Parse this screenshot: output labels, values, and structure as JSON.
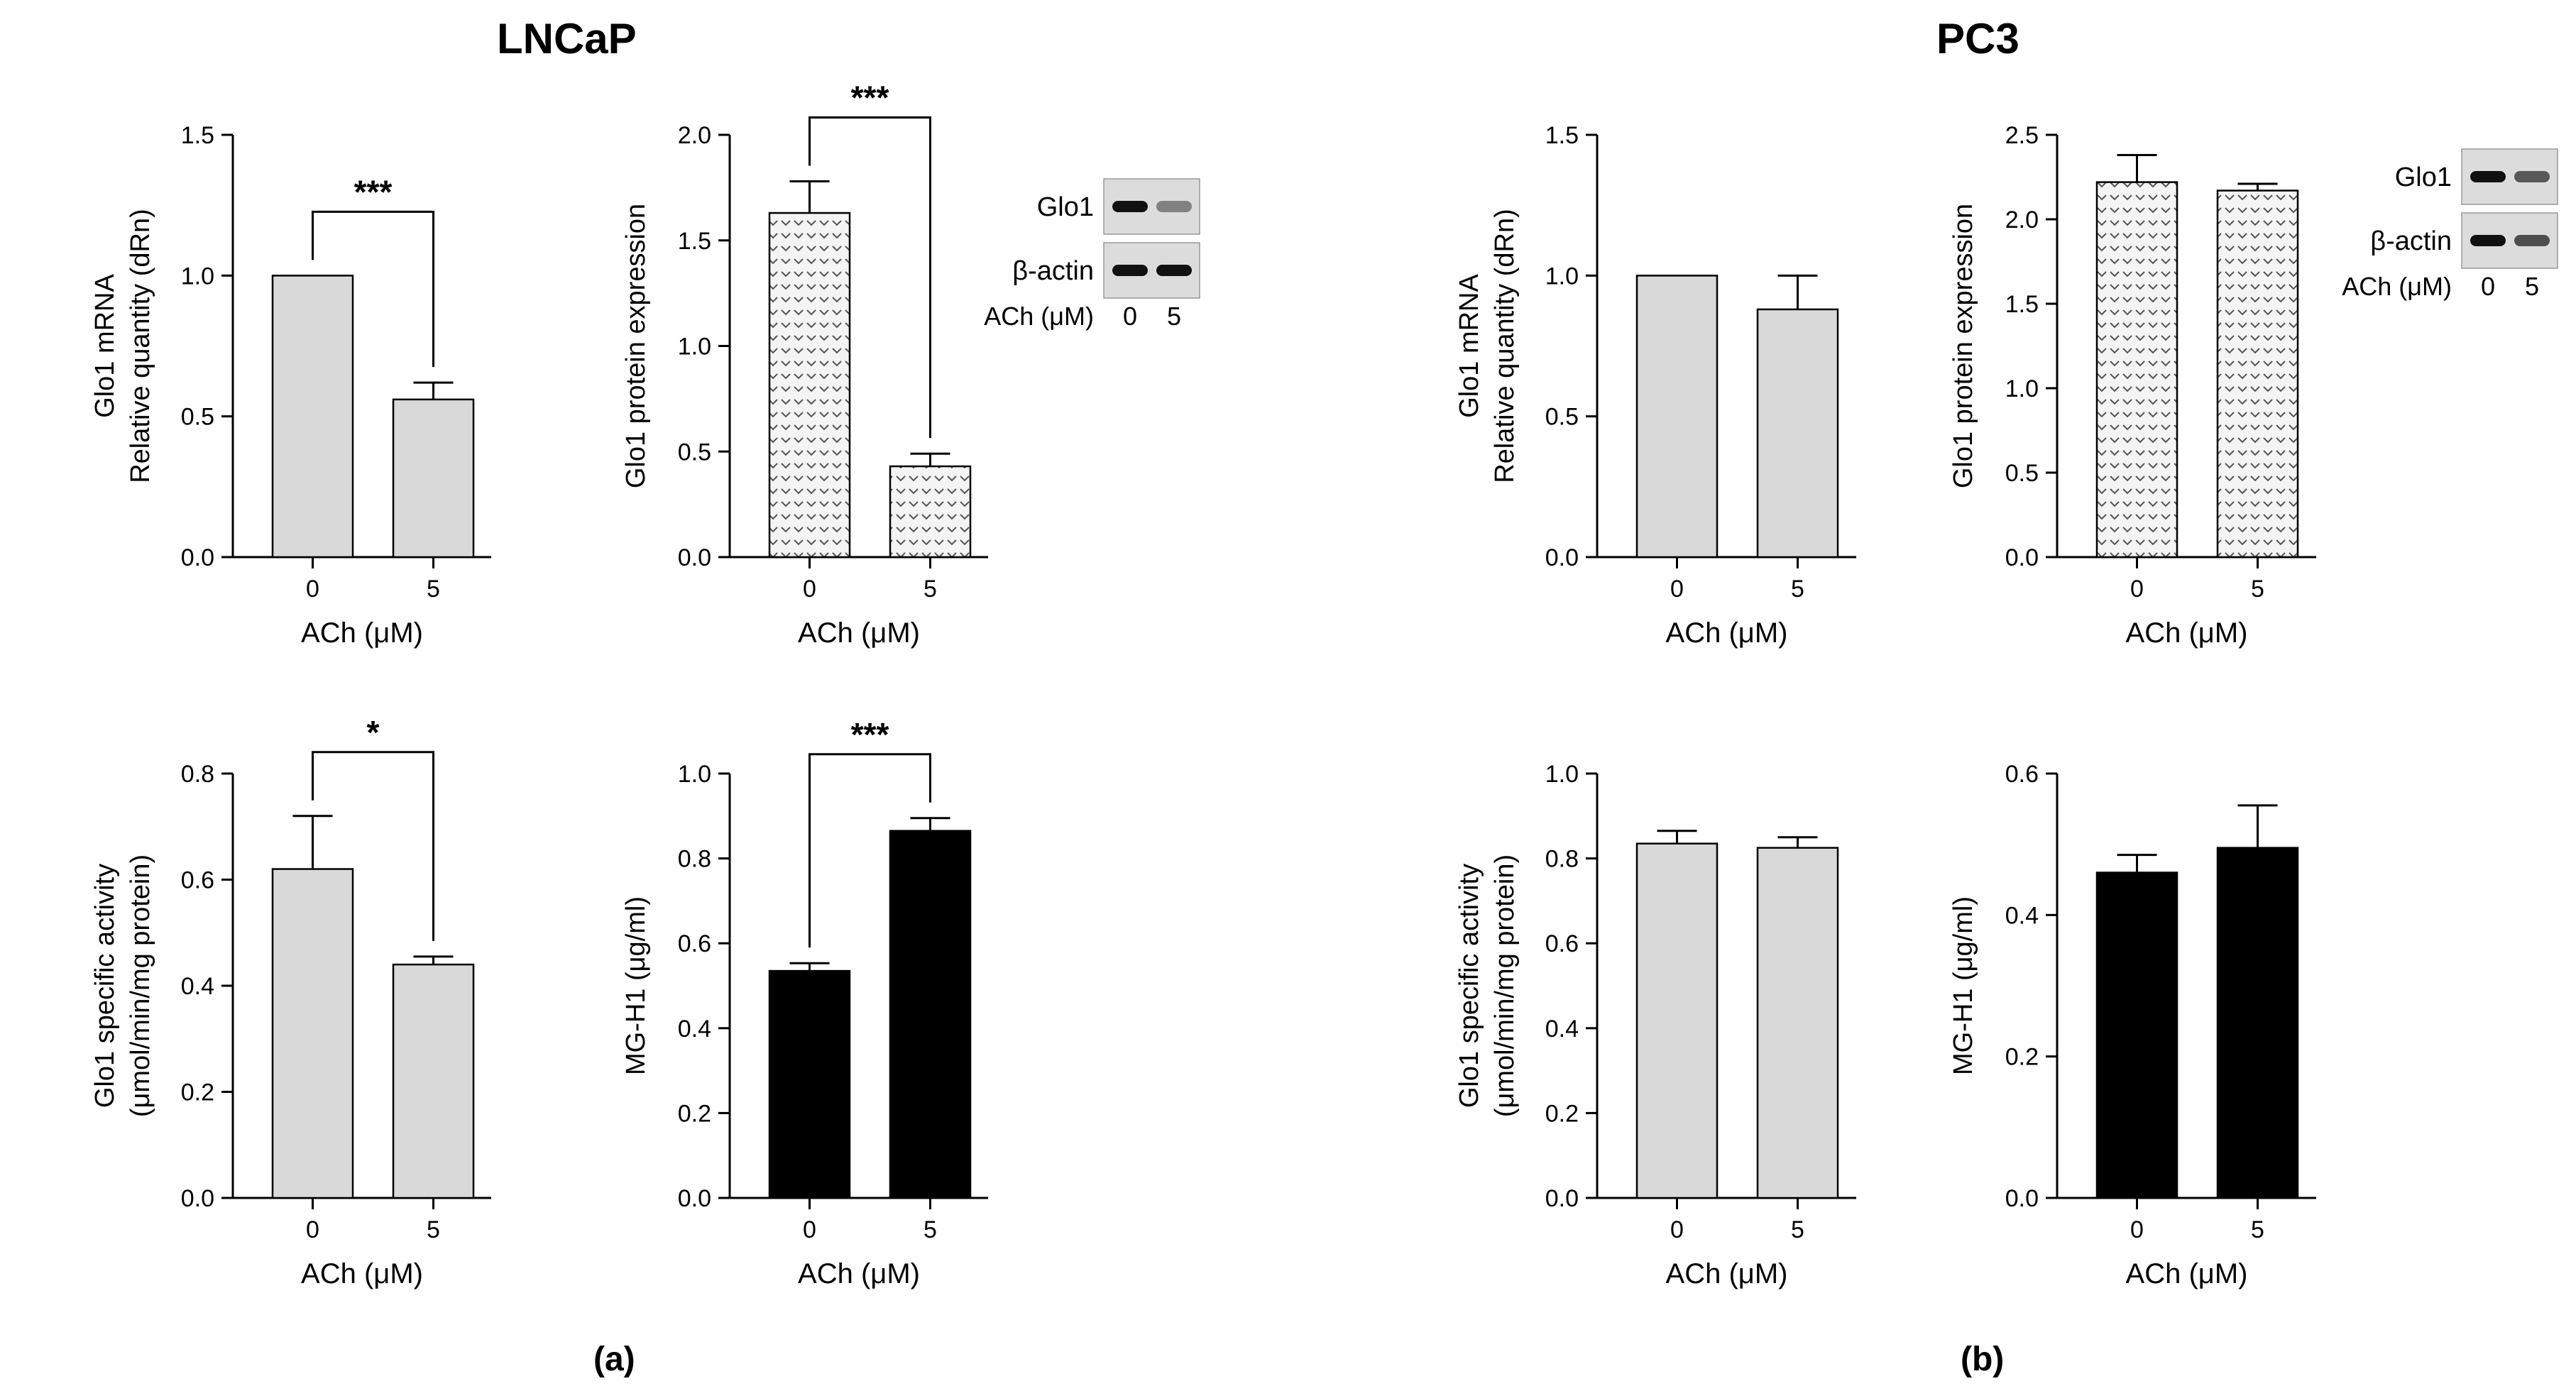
{
  "titles": {
    "left": "LNCaP",
    "right": "PC3"
  },
  "panel_labels": {
    "a": "(a)",
    "b": "(b)"
  },
  "colors": {
    "light_bar": "#d9d9d9",
    "dark_bar": "#000000",
    "axis": "#000000",
    "pattern_bg": "#f2f2f2"
  },
  "chart_data": [
    {
      "id": "lncap-mrna",
      "type": "bar",
      "bar_style": "light",
      "categories": [
        "0",
        "5"
      ],
      "values": [
        1.0,
        0.56
      ],
      "errors": [
        0,
        0.06
      ],
      "ylim": [
        0,
        1.5
      ],
      "yticks": [
        "0.0",
        "0.5",
        "1.0",
        "1.5"
      ],
      "ylabel": [
        "Glo1 mRNA",
        "Relative quantity (dRn)"
      ],
      "xlabel": "ACh (μM)",
      "significance": "***"
    },
    {
      "id": "lncap-protein",
      "type": "bar",
      "bar_style": "pattern",
      "categories": [
        "0",
        "5"
      ],
      "values": [
        1.63,
        0.43
      ],
      "errors": [
        0.15,
        0.06
      ],
      "ylim": [
        0,
        2.0
      ],
      "yticks": [
        "0.0",
        "0.5",
        "1.0",
        "1.5",
        "2.0"
      ],
      "ylabel": [
        "Glo1 protein expression"
      ],
      "xlabel": "ACh (μM)",
      "significance": "***",
      "blot": {
        "row1": "Glo1",
        "row2": "β-actin",
        "lane_label": "ACh (μM)",
        "lanes": [
          "0",
          "5"
        ],
        "row1_intensity": [
          1.0,
          0.45
        ],
        "row2_intensity": [
          1.0,
          1.0
        ]
      }
    },
    {
      "id": "lncap-activity",
      "type": "bar",
      "bar_style": "light",
      "categories": [
        "0",
        "5"
      ],
      "values": [
        0.62,
        0.44
      ],
      "errors": [
        0.1,
        0.015
      ],
      "ylim": [
        0,
        0.8
      ],
      "yticks": [
        "0.0",
        "0.2",
        "0.4",
        "0.6",
        "0.8"
      ],
      "ylabel": [
        "Glo1 specific activity",
        "(μmol/min/mg protein)"
      ],
      "xlabel": "ACh (μM)",
      "significance": "*"
    },
    {
      "id": "lncap-mgh1",
      "type": "bar",
      "bar_style": "dark",
      "categories": [
        "0",
        "5"
      ],
      "values": [
        0.535,
        0.865
      ],
      "errors": [
        0.018,
        0.03
      ],
      "ylim": [
        0,
        1.0
      ],
      "yticks": [
        "0.0",
        "0.2",
        "0.4",
        "0.6",
        "0.8",
        "1.0"
      ],
      "ylabel": [
        "MG-H1 (μg/ml)"
      ],
      "xlabel": "ACh (μM)",
      "significance": "***"
    },
    {
      "id": "pc3-mrna",
      "type": "bar",
      "bar_style": "light",
      "categories": [
        "0",
        "5"
      ],
      "values": [
        1.0,
        0.88
      ],
      "errors": [
        0,
        0.12
      ],
      "ylim": [
        0,
        1.5
      ],
      "yticks": [
        "0.0",
        "0.5",
        "1.0",
        "1.5"
      ],
      "ylabel": [
        "Glo1 mRNA",
        "Relative quantity (dRn)"
      ],
      "xlabel": "ACh (μM)",
      "significance": ""
    },
    {
      "id": "pc3-protein",
      "type": "bar",
      "bar_style": "pattern",
      "categories": [
        "0",
        "5"
      ],
      "values": [
        2.22,
        2.17
      ],
      "errors": [
        0.16,
        0.04
      ],
      "ylim": [
        0,
        2.5
      ],
      "yticks": [
        "0.0",
        "0.5",
        "1.0",
        "1.5",
        "2.0",
        "2.5"
      ],
      "ylabel": [
        "Glo1 protein expression"
      ],
      "xlabel": "ACh (μM)",
      "significance": "",
      "blot": {
        "row1": "Glo1",
        "row2": "β-actin",
        "lane_label": "ACh (μM)",
        "lanes": [
          "0",
          "5"
        ],
        "row1_intensity": [
          1.0,
          0.65
        ],
        "row2_intensity": [
          1.0,
          0.7
        ]
      }
    },
    {
      "id": "pc3-activity",
      "type": "bar",
      "bar_style": "light",
      "categories": [
        "0",
        "5"
      ],
      "values": [
        0.835,
        0.825
      ],
      "errors": [
        0.03,
        0.025
      ],
      "ylim": [
        0,
        1.0
      ],
      "yticks": [
        "0.0",
        "0.2",
        "0.4",
        "0.6",
        "0.8",
        "1.0"
      ],
      "ylabel": [
        "Glo1 specific activity",
        "(μmol/min/mg protein)"
      ],
      "xlabel": "ACh (μM)",
      "significance": ""
    },
    {
      "id": "pc3-mgh1",
      "type": "bar",
      "bar_style": "dark",
      "categories": [
        "0",
        "5"
      ],
      "values": [
        0.46,
        0.495
      ],
      "errors": [
        0.025,
        0.06
      ],
      "ylim": [
        0,
        0.6
      ],
      "yticks": [
        "0.0",
        "0.2",
        "0.4",
        "0.6"
      ],
      "ylabel": [
        "MG-H1 (μg/ml)"
      ],
      "xlabel": "ACh (μM)",
      "significance": ""
    }
  ]
}
